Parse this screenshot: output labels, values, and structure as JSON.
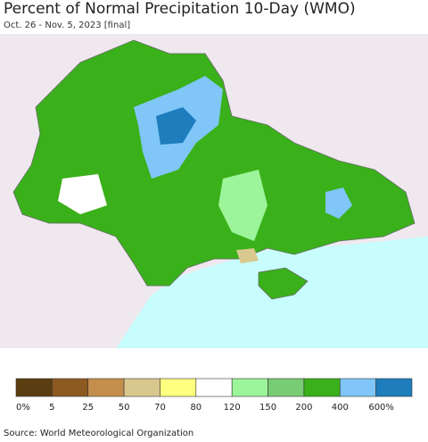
{
  "header": {
    "title": "Percent of Normal Precipitation 10-Day (WMO)",
    "subtitle": "Oct. 26 - Nov. 5, 2023 [final]"
  },
  "legend": {
    "items": [
      {
        "label": "0%",
        "color": "#5a3d11"
      },
      {
        "label": "5",
        "color": "#8d5a21"
      },
      {
        "label": "25",
        "color": "#c48f4c"
      },
      {
        "label": "50",
        "color": "#d9c88e"
      },
      {
        "label": "70",
        "color": "#ffff80"
      },
      {
        "label": "80",
        "color": "#ffffff"
      },
      {
        "label": "120",
        "color": "#9cf59a"
      },
      {
        "label": "150",
        "color": "#78cc73"
      },
      {
        "label": "200",
        "color": "#3ab01a"
      },
      {
        "label": "400",
        "color": "#80c6f8"
      },
      {
        "label": "600%",
        "color": "#1d7dbd"
      }
    ]
  },
  "footer": {
    "source": "Source: World Meteorological Organization"
  }
}
